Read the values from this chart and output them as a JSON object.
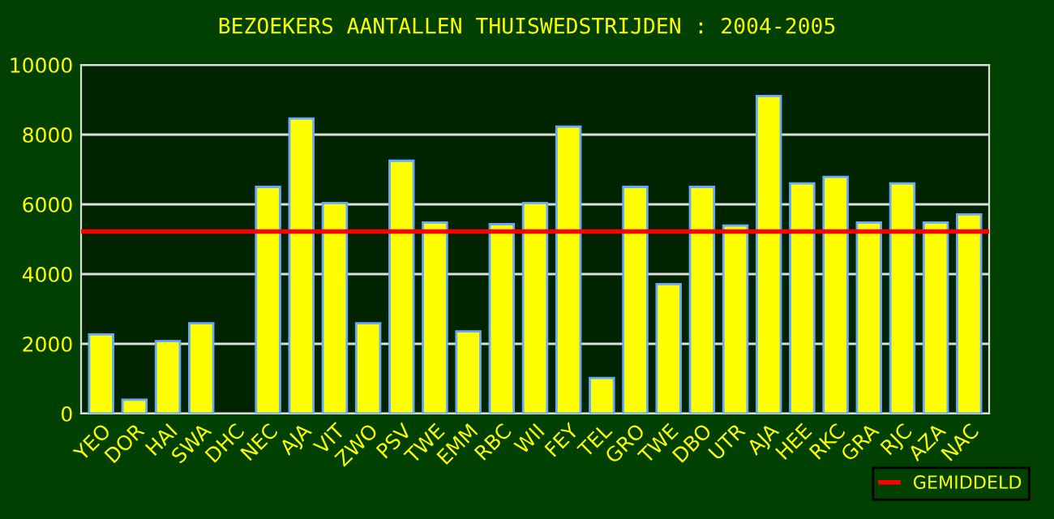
{
  "chart_data": {
    "type": "bar",
    "title": "BEZOEKERS AANTALLEN THUISWEDSTRIJDEN : 2004-2005",
    "categories": [
      "YEO",
      "DOR",
      "HAI",
      "SWA",
      "DHC",
      "NEC",
      "AJA",
      "VIT",
      "ZWO",
      "PSV",
      "TWE",
      "EMM",
      "RBC",
      "WII",
      "FEY",
      "TEL",
      "GRO",
      "TWE",
      "DBO",
      "UTR",
      "AJA",
      "HEE",
      "RKC",
      "GRA",
      "RJC",
      "AZA",
      "NAC"
    ],
    "values": [
      2270,
      400,
      2080,
      2590,
      null,
      6500,
      8460,
      6040,
      2590,
      7250,
      5480,
      2360,
      5430,
      6040,
      8230,
      1020,
      6500,
      3710,
      6500,
      5390,
      9110,
      6600,
      6790,
      5480,
      6600,
      5480,
      5710
    ],
    "color": "#ffff00",
    "ylim": [
      0,
      10000
    ],
    "yticks": [
      0,
      2000,
      4000,
      6000,
      8000,
      10000
    ],
    "grid": "y",
    "ref_lines": [
      {
        "axis": "y",
        "value": 5220,
        "label": "GEMIDDELD",
        "color": "#ff0000"
      }
    ],
    "legend": "bottom right"
  }
}
